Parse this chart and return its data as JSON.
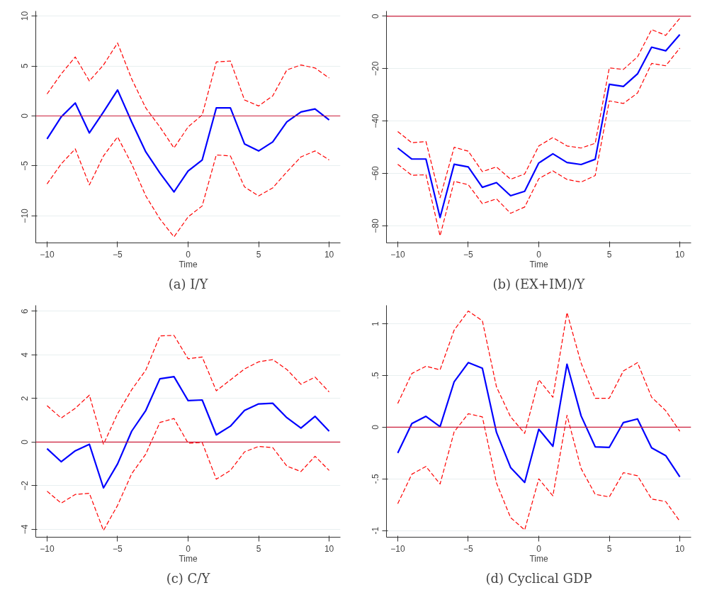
{
  "chart_data": [
    {
      "type": "line",
      "title": "(a) I/Y",
      "xlabel": "Time",
      "x": [
        -10,
        -9,
        -8,
        -7,
        -6,
        -5,
        -4,
        -3,
        -2,
        -1,
        0,
        1,
        2,
        3,
        4,
        5,
        6,
        7,
        8,
        9,
        10
      ],
      "xlim": [
        -10.8,
        10.8
      ],
      "xticks": [
        -10,
        -5,
        0,
        5,
        10
      ],
      "ylim": [
        -12.7,
        10.5
      ],
      "yticks": [
        -10,
        -5,
        0,
        5,
        10
      ],
      "grid": "y",
      "ref_lines": [
        {
          "axis": "y",
          "value": 0,
          "color": "#cc1f3c"
        }
      ],
      "series": [
        {
          "color": "#0000ff",
          "line_style": "solid",
          "values": [
            -2.3,
            -0.1,
            1.3,
            -1.7,
            0.4,
            2.6,
            -0.6,
            -3.6,
            -5.7,
            -7.6,
            -5.5,
            -4.4,
            0.8,
            0.8,
            -2.8,
            -3.5,
            -2.6,
            -0.6,
            0.4,
            0.7,
            -0.4
          ]
        },
        {
          "color": "#ff0000",
          "line_style": "dashed",
          "values": [
            2.2,
            4.2,
            5.9,
            3.5,
            5.1,
            7.3,
            3.7,
            0.8,
            -1.1,
            -3.2,
            -1.1,
            0.1,
            5.4,
            5.5,
            1.6,
            1.0,
            2.0,
            4.6,
            5.1,
            4.8,
            3.8
          ]
        },
        {
          "color": "#ff0000",
          "line_style": "dashed",
          "values": [
            -6.8,
            -4.8,
            -3.3,
            -6.9,
            -4.0,
            -2.1,
            -4.8,
            -8.0,
            -10.3,
            -12.1,
            -10.1,
            -9.0,
            -3.9,
            -4.0,
            -7.1,
            -8.0,
            -7.2,
            -5.6,
            -4.1,
            -3.5,
            -4.4
          ]
        }
      ]
    },
    {
      "type": "line",
      "title": "(b) (EX+IM)/Y",
      "xlabel": "Time",
      "x": [
        -10,
        -9,
        -8,
        -7,
        -6,
        -5,
        -4,
        -3,
        -2,
        -1,
        0,
        1,
        2,
        3,
        4,
        5,
        6,
        7,
        8,
        9,
        10
      ],
      "xlim": [
        -10.8,
        10.8
      ],
      "xticks": [
        -10,
        -5,
        0,
        5,
        10
      ],
      "ylim": [
        -86.5,
        2
      ],
      "yticks": [
        -80,
        -60,
        -40,
        -20,
        0
      ],
      "grid": "y",
      "ref_lines": [
        {
          "axis": "y",
          "value": 0,
          "color": "#cc1f3c"
        }
      ],
      "series": [
        {
          "color": "#0000ff",
          "line_style": "solid",
          "values": [
            -50.3,
            -54.5,
            -54.5,
            -76.8,
            -56.5,
            -57.5,
            -65.3,
            -63.5,
            -68.5,
            -66.8,
            -56,
            -52.5,
            -55.8,
            -56.6,
            -54.6,
            -26,
            -26.8,
            -22,
            -11.8,
            -13.2,
            -7
          ]
        },
        {
          "color": "#ff0000",
          "line_style": "dashed",
          "values": [
            -44,
            -48.3,
            -47.8,
            -69.3,
            -50,
            -51.5,
            -59.3,
            -57.5,
            -62.2,
            -60.2,
            -49.5,
            -46.3,
            -49.5,
            -50.3,
            -48.5,
            -19.7,
            -20.3,
            -15.5,
            -5.1,
            -7.3,
            -0.8
          ]
        },
        {
          "color": "#ff0000",
          "line_style": "dashed",
          "values": [
            -56.5,
            -60.7,
            -60.5,
            -83.8,
            -63,
            -64.3,
            -71.5,
            -69.7,
            -75.2,
            -72.8,
            -62,
            -59,
            -62.3,
            -63.3,
            -60.8,
            -32.3,
            -33.3,
            -29.3,
            -18,
            -18.9,
            -12.2
          ]
        }
      ]
    },
    {
      "type": "line",
      "title": "(c) C/Y",
      "xlabel": "Time",
      "x": [
        -10,
        -9,
        -8,
        -7,
        -6,
        -5,
        -4,
        -3,
        -2,
        -1,
        0,
        1,
        2,
        3,
        4,
        5,
        6,
        7,
        8,
        9,
        10
      ],
      "xlim": [
        -10.8,
        10.8
      ],
      "xticks": [
        -10,
        -5,
        0,
        5,
        10
      ],
      "ylim": [
        -4.36,
        6.27
      ],
      "yticks": [
        -4,
        -2,
        0,
        2,
        4,
        6
      ],
      "grid": "y",
      "ref_lines": [
        {
          "axis": "y",
          "value": 0,
          "color": "#cc1f3c"
        }
      ],
      "series": [
        {
          "color": "#0000ff",
          "line_style": "solid",
          "values": [
            -0.3,
            -0.9,
            -0.4,
            -0.1,
            -2.1,
            -1.0,
            0.5,
            1.45,
            2.9,
            3.0,
            1.9,
            1.93,
            0.33,
            0.73,
            1.45,
            1.75,
            1.78,
            1.12,
            0.64,
            1.18,
            0.5
          ]
        },
        {
          "color": "#ff0000",
          "line_style": "dashed",
          "values": [
            1.67,
            1.1,
            1.55,
            2.15,
            -0.1,
            1.3,
            2.4,
            3.3,
            4.87,
            4.89,
            3.82,
            3.9,
            2.35,
            2.85,
            3.35,
            3.68,
            3.78,
            3.33,
            2.65,
            2.98,
            2.3
          ]
        },
        {
          "color": "#ff0000",
          "line_style": "dashed",
          "values": [
            -2.25,
            -2.8,
            -2.4,
            -2.35,
            -4.05,
            -2.9,
            -1.45,
            -0.55,
            0.9,
            1.08,
            -0.05,
            -0.02,
            -1.7,
            -1.3,
            -0.45,
            -0.2,
            -0.25,
            -1.1,
            -1.35,
            -0.65,
            -1.3
          ]
        }
      ]
    },
    {
      "type": "line",
      "title": "(d) Cyclical GDP",
      "xlabel": "Time",
      "x": [
        -10,
        -9,
        -8,
        -7,
        -6,
        -5,
        -4,
        -3,
        -2,
        -1,
        0,
        1,
        2,
        3,
        4,
        5,
        6,
        7,
        8,
        9,
        10
      ],
      "xlim": [
        -10.8,
        10.8
      ],
      "xticks": [
        -10,
        -5,
        0,
        5,
        10
      ],
      "ylim": [
        -1.065,
        1.18
      ],
      "yticks": [
        {
          "value": -1,
          "label": "-1"
        },
        {
          "value": -0.5,
          "label": "-.5"
        },
        {
          "value": 0,
          "label": "0"
        },
        {
          "value": 0.5,
          "label": ".5"
        },
        {
          "value": 1,
          "label": "1"
        }
      ],
      "grid": "y",
      "ref_lines": [
        {
          "axis": "y",
          "value": 0,
          "color": "#cc1f3c"
        }
      ],
      "series": [
        {
          "color": "#0000ff",
          "line_style": "solid",
          "values": [
            -0.25,
            0.035,
            0.105,
            0.005,
            0.44,
            0.625,
            0.57,
            -0.05,
            -0.39,
            -0.535,
            -0.02,
            -0.185,
            0.61,
            0.11,
            -0.19,
            -0.195,
            0.045,
            0.08,
            -0.2,
            -0.275,
            -0.48
          ]
        },
        {
          "color": "#ff0000",
          "line_style": "dashed",
          "values": [
            0.23,
            0.52,
            0.59,
            0.555,
            0.94,
            1.125,
            1.03,
            0.39,
            0.1,
            -0.06,
            0.46,
            0.29,
            1.11,
            0.62,
            0.28,
            0.28,
            0.545,
            0.625,
            0.29,
            0.16,
            -0.04
          ]
        },
        {
          "color": "#ff0000",
          "line_style": "dashed",
          "values": [
            -0.74,
            -0.455,
            -0.38,
            -0.55,
            -0.045,
            0.13,
            0.1,
            -0.54,
            -0.875,
            -0.995,
            -0.5,
            -0.665,
            0.115,
            -0.4,
            -0.65,
            -0.675,
            -0.44,
            -0.47,
            -0.695,
            -0.72,
            -0.91
          ]
        }
      ]
    }
  ]
}
